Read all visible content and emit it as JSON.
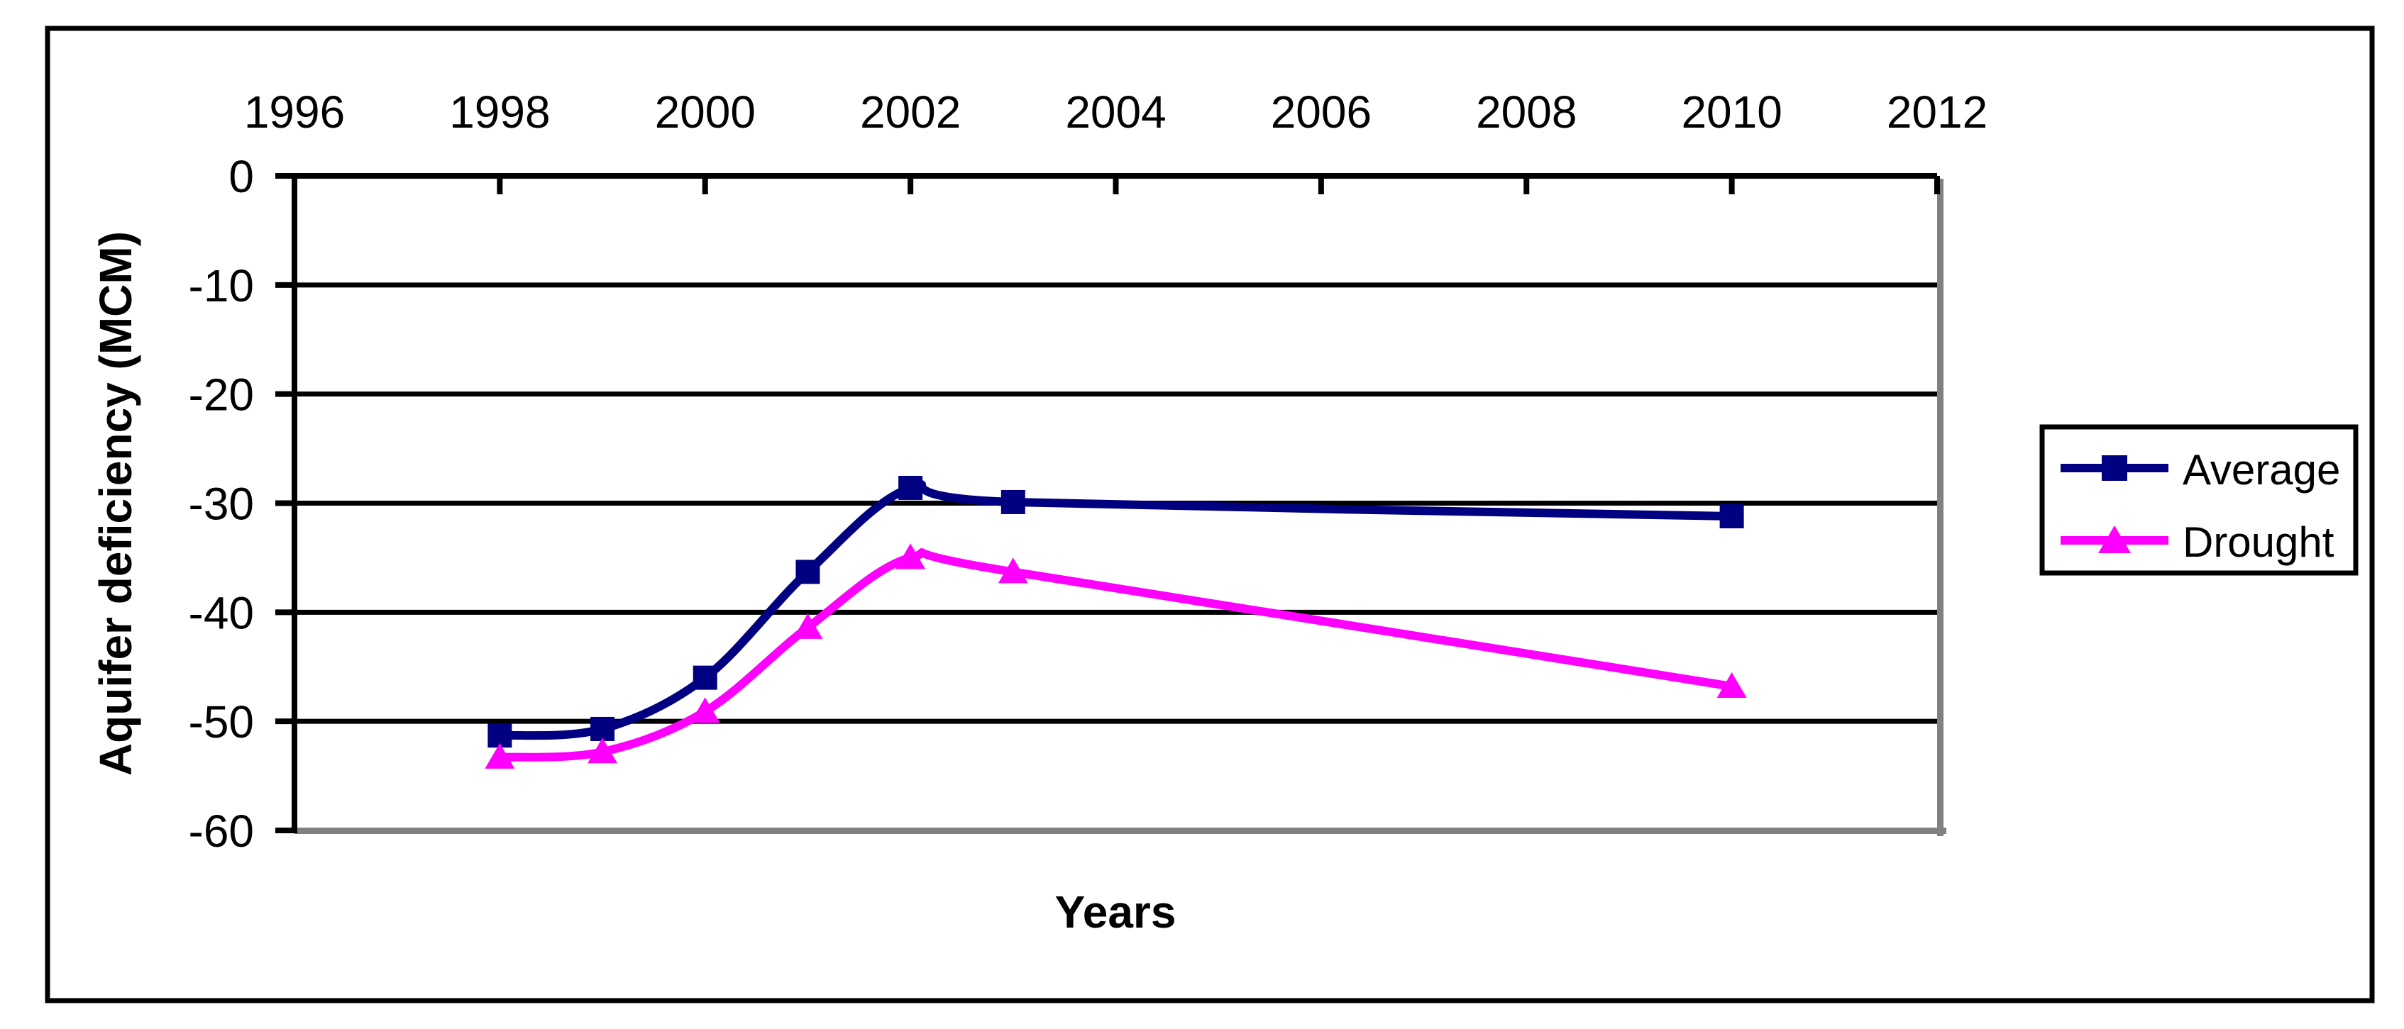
{
  "figure": {
    "background": "#FFFFFF",
    "border_color": "#000000"
  },
  "chart_data": {
    "type": "line",
    "title": "",
    "xlabel": "Years",
    "ylabel": "Aquifer deficiency (MCM)",
    "x": [
      1998,
      1999,
      2000,
      2001,
      2002,
      2003,
      2010
    ],
    "series": [
      {
        "name": "Average",
        "color": "#000080",
        "marker": "square",
        "values": [
          -51.3,
          -50.7,
          -46.0,
          -36.3,
          -28.6,
          -29.9,
          -31.2
        ]
      },
      {
        "name": "Drought",
        "color": "#FF00FF",
        "marker": "triangle",
        "values": [
          -53.3,
          -52.8,
          -49.1,
          -41.4,
          -35.0,
          -36.3,
          -46.8
        ]
      }
    ],
    "x_axis": {
      "min": 1996,
      "max": 2012,
      "tick_step": 2,
      "tick_labels": [
        "1996",
        "1998",
        "2000",
        "2002",
        "2004",
        "2006",
        "2008",
        "2010",
        "2012"
      ],
      "position": "top"
    },
    "y_axis": {
      "min": -60,
      "max": 0,
      "tick_step": 10,
      "tick_labels": [
        "0",
        "-10",
        "-20",
        "-30",
        "-40",
        "-50",
        "-60"
      ]
    },
    "grid": "horizontal",
    "line_smoothing": true,
    "gridline_color": "#000000",
    "shadow_color": "#808080",
    "legend": {
      "position": "right",
      "border": true,
      "entries": [
        "Average",
        "Drought"
      ]
    }
  }
}
